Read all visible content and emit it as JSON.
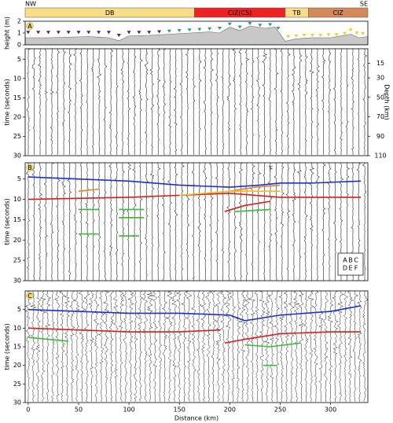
{
  "regions_bar": {
    "left_label": "NW",
    "right_label": "SE",
    "regions": [
      {
        "label": "DB",
        "start": -3,
        "end": 165,
        "color": "#f8dc88"
      },
      {
        "label": "CIZ(CS)",
        "start": 165,
        "end": 255,
        "color": "#ee2222"
      },
      {
        "label": "TB",
        "start": 255,
        "end": 278,
        "color": "#f8dc88"
      },
      {
        "label": "CIZ",
        "start": 278,
        "end": 337,
        "color": "#d4895a"
      }
    ]
  },
  "chart_data": [
    {
      "type": "area",
      "panel_label": "A",
      "ylabel": "height (m)",
      "xlim": [
        -3,
        337
      ],
      "ylim": [
        0,
        2
      ],
      "yticks": [
        0,
        1,
        2
      ],
      "color": "#c8c8c8",
      "x": [
        -3,
        20,
        40,
        60,
        80,
        90,
        100,
        120,
        140,
        160,
        180,
        190,
        200,
        210,
        220,
        235,
        245,
        255,
        265,
        280,
        300,
        320,
        328,
        337
      ],
      "values": [
        0.6,
        0.6,
        0.65,
        0.7,
        0.6,
        0.35,
        0.75,
        0.8,
        0.9,
        1.0,
        1.1,
        1.0,
        1.5,
        1.2,
        1.6,
        1.4,
        1.5,
        0.3,
        0.5,
        0.6,
        0.6,
        0.9,
        0.6,
        0.7
      ],
      "stations": [
        {
          "color": "#5a1a6a",
          "x": [
            0,
            10,
            20,
            30,
            40,
            50,
            60,
            70,
            80,
            90,
            100,
            110,
            120,
            130
          ],
          "values": [
            1.05,
            1.05,
            1.05,
            1.05,
            1.05,
            1.05,
            1.05,
            1.05,
            1.05,
            0.8,
            1.05,
            1.05,
            1.05,
            1.1
          ]
        },
        {
          "color": "#2a9a8a",
          "x": [
            140,
            150,
            160,
            170,
            180,
            190,
            200,
            210,
            220,
            230,
            240,
            248
          ],
          "values": [
            1.15,
            1.2,
            1.25,
            1.3,
            1.35,
            1.4,
            1.75,
            1.5,
            1.8,
            1.65,
            1.7,
            1.4
          ]
        },
        {
          "color": "#f0d020",
          "x": [
            258,
            266,
            274,
            282,
            290,
            298,
            306,
            314,
            320,
            326,
            332
          ],
          "values": [
            0.7,
            0.75,
            0.8,
            0.8,
            0.8,
            0.85,
            0.85,
            0.95,
            1.25,
            1.0,
            0.95
          ]
        }
      ]
    },
    {
      "type": "seismic",
      "ylabel": "time (seconds)",
      "xlim": [
        -3,
        337
      ],
      "ylim": [
        30,
        2.3
      ],
      "yticks": [
        5,
        10,
        15,
        20,
        25,
        30
      ],
      "y2label": "Depth (km)",
      "y2lim": [
        110,
        0
      ],
      "y2ticks": [
        15,
        30,
        50,
        70,
        90,
        110
      ]
    },
    {
      "type": "seismic",
      "panel_label": "B",
      "ylabel": "time (seconds)",
      "xlim": [
        -3,
        337
      ],
      "ylim": [
        30,
        1
      ],
      "yticks": [
        5,
        10,
        15,
        20,
        25,
        30
      ],
      "annotation": "F",
      "series": [
        {
          "color": "#1a2ee0",
          "x": [
            0,
            50,
            100,
            150,
            200,
            230,
            250,
            280,
            330
          ],
          "values": [
            4.5,
            5,
            5.5,
            6.5,
            7,
            6.5,
            6,
            6,
            5.5
          ]
        },
        {
          "color": "#e01a1a",
          "x": [
            0,
            100,
            150,
            200,
            250,
            330
          ],
          "values": [
            10,
            9.5,
            9,
            8.5,
            9.5,
            9.5
          ]
        },
        {
          "color": "#e01a1a",
          "x": [
            195,
            215,
            240
          ],
          "values": [
            13,
            11.5,
            10.5
          ]
        },
        {
          "color": "#f08020",
          "x": [
            50,
            70
          ],
          "values": [
            8,
            7.5
          ]
        },
        {
          "color": "#f08020",
          "x": [
            200,
            225,
            250
          ],
          "values": [
            8,
            7,
            6.5
          ]
        },
        {
          "color": "#e8c020",
          "x": [
            150,
            200,
            250
          ],
          "values": [
            9,
            8,
            8
          ]
        },
        {
          "color": "#30c030",
          "x": [
            50,
            70
          ],
          "values": [
            12.5,
            12.5
          ]
        },
        {
          "color": "#30c030",
          "x": [
            90,
            115
          ],
          "values": [
            12.5,
            12.5
          ]
        },
        {
          "color": "#30c030",
          "x": [
            205,
            240
          ],
          "values": [
            13,
            12.5
          ]
        },
        {
          "color": "#30c030",
          "x": [
            50,
            70
          ],
          "values": [
            18.5,
            18.5
          ]
        },
        {
          "color": "#30c030",
          "x": [
            90,
            115
          ],
          "values": [
            14.5,
            14.5
          ]
        },
        {
          "color": "#30c030",
          "x": [
            90,
            110
          ],
          "values": [
            19,
            19
          ]
        }
      ],
      "legend_rows": [
        [
          {
            "text": "A",
            "color": "#1a2ee0"
          },
          {
            "text": "B",
            "color": "#f08020"
          },
          {
            "text": "C",
            "color": "#e8c020"
          }
        ],
        [
          {
            "text": "D",
            "color": "#e01a1a"
          },
          {
            "text": "E",
            "color": "#3050ff"
          },
          {
            "text": "F",
            "color": "#30c030"
          }
        ]
      ]
    },
    {
      "type": "seismic",
      "panel_label": "C",
      "ylabel": "time (seconds)",
      "xlabel": "Distance (km)",
      "xlim": [
        -3,
        337
      ],
      "ylim": [
        30,
        0
      ],
      "yticks": [
        5,
        10,
        15,
        20,
        25,
        30
      ],
      "xticks": [
        0,
        50,
        100,
        150,
        200,
        250,
        300
      ],
      "series": [
        {
          "color": "#1a2ee0",
          "x": [
            0,
            50,
            100,
            150,
            200,
            215,
            250,
            300,
            330
          ],
          "values": [
            5,
            5.5,
            6,
            6,
            6.5,
            8,
            6.5,
            5.5,
            4
          ]
        },
        {
          "color": "#e01a1a",
          "x": [
            0,
            50,
            100,
            150,
            190
          ],
          "values": [
            10,
            10.5,
            11,
            11,
            10.5
          ]
        },
        {
          "color": "#e01a1a",
          "x": [
            195,
            215,
            250,
            300,
            330
          ],
          "values": [
            14,
            13,
            11.5,
            11,
            11
          ]
        },
        {
          "color": "#30c030",
          "x": [
            0,
            20,
            40
          ],
          "values": [
            12.5,
            13,
            13.5
          ]
        },
        {
          "color": "#30c030",
          "x": [
            215,
            240,
            270
          ],
          "values": [
            14.5,
            15,
            14
          ]
        },
        {
          "color": "#30c030",
          "x": [
            233,
            247
          ],
          "values": [
            20,
            20
          ]
        }
      ]
    }
  ]
}
